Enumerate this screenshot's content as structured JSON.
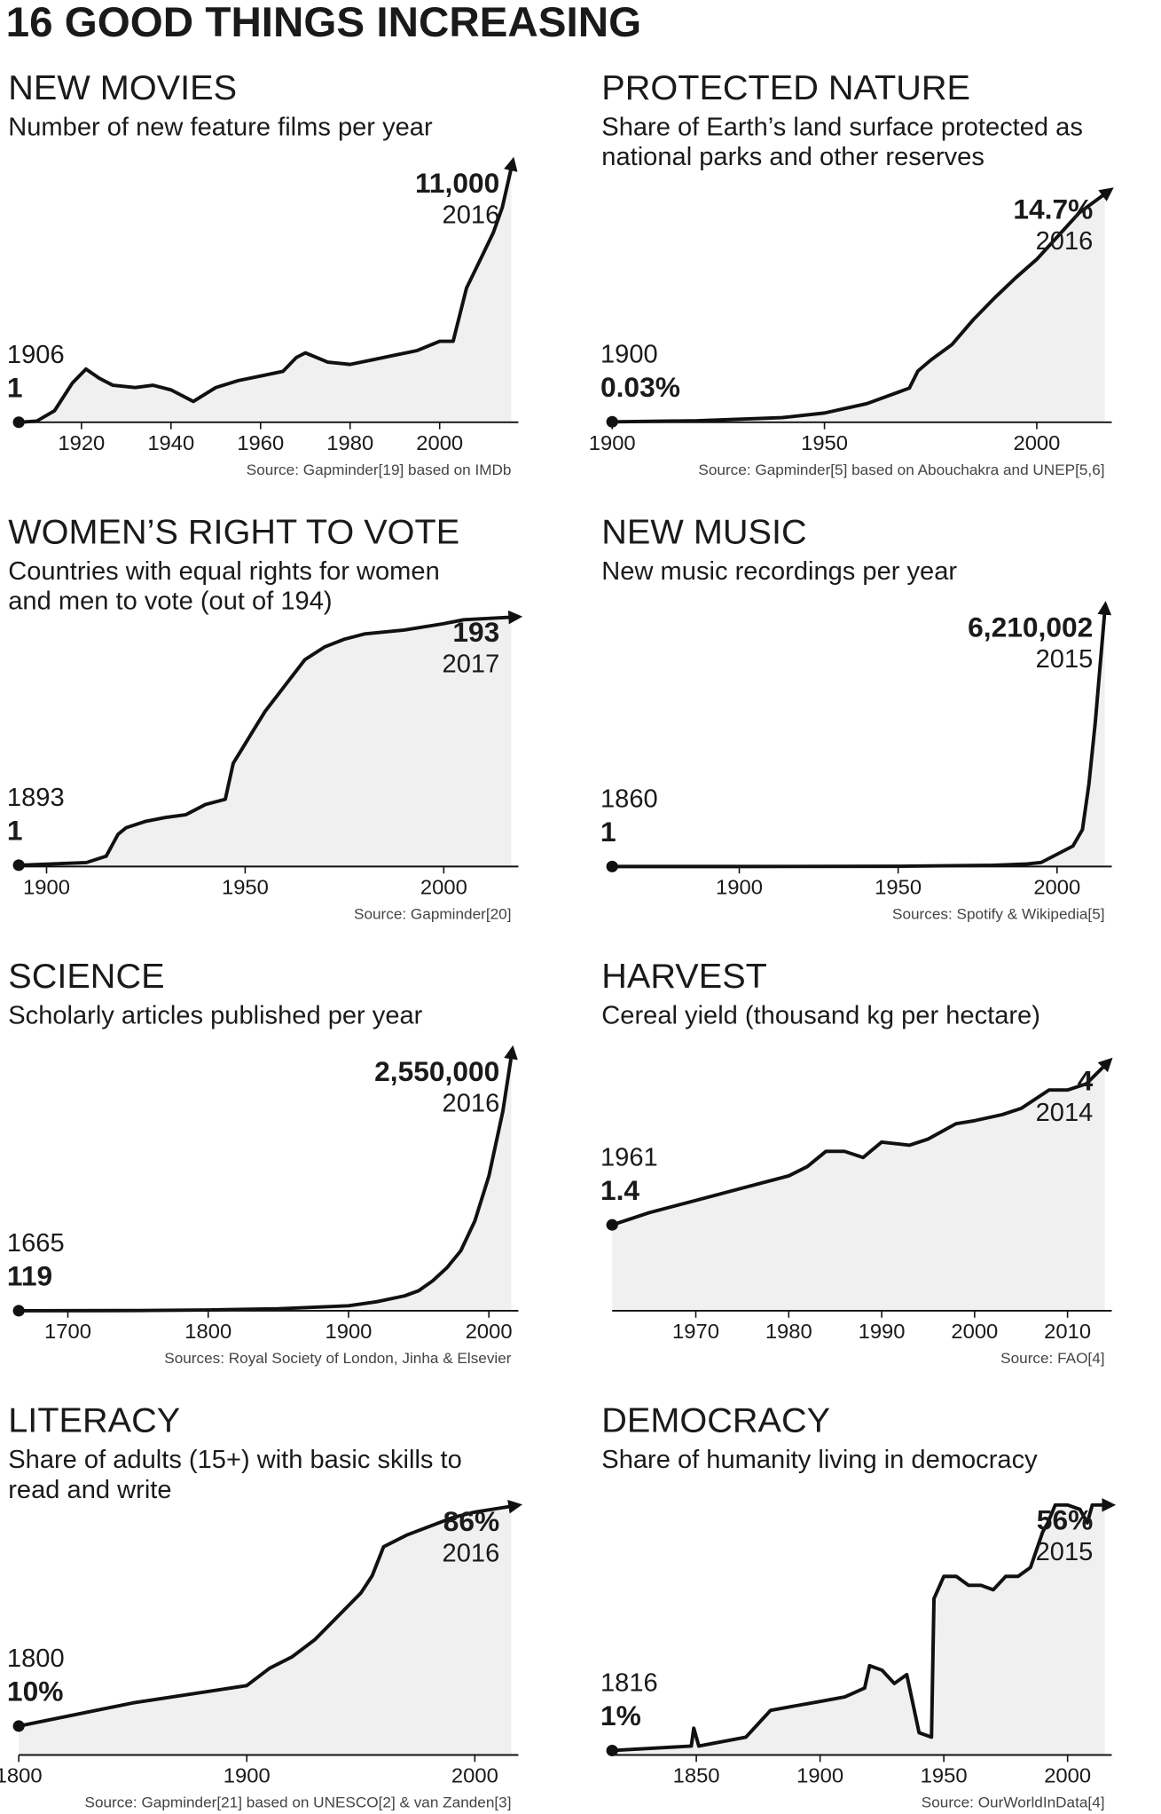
{
  "title": "16 GOOD THINGS INCREASING",
  "chart_data": [
    {
      "type": "line",
      "title": "NEW MOVIES",
      "subtitle": [
        "Number of new feature films per year"
      ],
      "source": "Source: Gapminder[19] based on IMDb",
      "x": [
        1906,
        1910,
        1914,
        1918,
        1921,
        1924,
        1927,
        1932,
        1936,
        1940,
        1945,
        1950,
        1955,
        1960,
        1965,
        1968,
        1970,
        1975,
        1980,
        1985,
        1990,
        1995,
        2000,
        2003,
        2006,
        2009,
        2012,
        2014,
        2016
      ],
      "values": [
        1,
        50,
        500,
        1700,
        2300,
        1900,
        1600,
        1500,
        1600,
        1400,
        900,
        1500,
        1800,
        2000,
        2200,
        2800,
        3000,
        2600,
        2500,
        2700,
        2900,
        3100,
        3500,
        3500,
        5800,
        7000,
        8200,
        9300,
        11000
      ],
      "xlim": [
        1906,
        2016
      ],
      "ylim": [
        0,
        11000
      ],
      "xticks": [
        1920,
        1940,
        1960,
        1980,
        2000
      ],
      "annotations": [
        {
          "x": 1906,
          "value": 1
        },
        {
          "x": 2016,
          "value": 11000,
          "label": "11,000"
        }
      ]
    },
    {
      "type": "line",
      "title": "PROTECTED NATURE",
      "subtitle": [
        "Share of Earth’s land surface protected as",
        "national parks and other reserves"
      ],
      "source": "Source: Gapminder[5] based on Abouchakra and UNEP[5,6]",
      "x": [
        1900,
        1920,
        1940,
        1950,
        1960,
        1970,
        1972,
        1975,
        1980,
        1985,
        1990,
        1995,
        2000,
        2005,
        2010,
        2016
      ],
      "values": [
        0.03,
        0.1,
        0.3,
        0.6,
        1.2,
        2.2,
        3.3,
        4.0,
        5.0,
        6.6,
        8.0,
        9.3,
        10.5,
        12.0,
        13.5,
        14.7
      ],
      "xlim": [
        1900,
        2016
      ],
      "ylim": [
        0,
        16.4
      ],
      "xticks": [
        1900,
        1950,
        2000
      ],
      "annotations": [
        {
          "x": 1900,
          "value": 0.03,
          "label": "0.03%"
        },
        {
          "x": 2016,
          "value": 14.7,
          "label": "14.7%"
        }
      ]
    },
    {
      "type": "line",
      "title": "WOMEN’S RIGHT TO VOTE",
      "subtitle": [
        "Countries with equal rights for women",
        "and men to vote (out of 194)"
      ],
      "source": "Source: Gapminder[20]",
      "x": [
        1893,
        1910,
        1915,
        1918,
        1920,
        1925,
        1930,
        1935,
        1940,
        1945,
        1947,
        1950,
        1952,
        1955,
        1960,
        1965,
        1970,
        1975,
        1980,
        1990,
        2000,
        2005,
        2017
      ],
      "values": [
        1,
        3,
        8,
        25,
        30,
        35,
        38,
        40,
        48,
        52,
        80,
        95,
        105,
        120,
        140,
        160,
        170,
        176,
        180,
        183,
        188,
        191,
        193
      ],
      "xlim": [
        1893,
        2017
      ],
      "ylim": [
        0,
        197
      ],
      "xticks": [
        1900,
        1950,
        2000
      ],
      "annotations": [
        {
          "x": 1893,
          "value": 1
        },
        {
          "x": 2017,
          "value": 193
        }
      ]
    },
    {
      "type": "line",
      "title": "NEW MUSIC",
      "subtitle": [
        "New music recordings per year"
      ],
      "source": "Sources: Spotify & Wikipedia[5]",
      "x": [
        1860,
        1900,
        1950,
        1980,
        1990,
        1995,
        2000,
        2005,
        2008,
        2010,
        2012,
        2015
      ],
      "values": [
        1,
        100,
        5000,
        30000,
        60000,
        100000,
        300000,
        500000,
        900000,
        2000000,
        3500000,
        6210002
      ],
      "xlim": [
        1860,
        2015
      ],
      "ylim": [
        0,
        6210002
      ],
      "xticks": [
        1900,
        1950,
        2000
      ],
      "annotations": [
        {
          "x": 1860,
          "value": 1
        },
        {
          "x": 2015,
          "value": 6210002,
          "label": "6,210,002"
        }
      ]
    },
    {
      "type": "line",
      "title": "SCIENCE",
      "subtitle": [
        "Scholarly articles published per year"
      ],
      "source": "Sources: Royal Society of London, Jinha & Elsevier",
      "x": [
        1665,
        1750,
        1800,
        1850,
        1900,
        1920,
        1940,
        1950,
        1960,
        1970,
        1980,
        1990,
        2000,
        2010,
        2016
      ],
      "values": [
        119,
        2000,
        8000,
        20000,
        50000,
        90000,
        150000,
        200000,
        300000,
        430000,
        600000,
        900000,
        1350000,
        2000000,
        2550000
      ],
      "xlim": [
        1665,
        2016
      ],
      "ylim": [
        0,
        2550000
      ],
      "xticks": [
        1700,
        1800,
        1900,
        2000
      ],
      "annotations": [
        {
          "x": 1665,
          "value": 119
        },
        {
          "x": 2016,
          "value": 2550000,
          "label": "2,550,000"
        }
      ]
    },
    {
      "type": "line",
      "title": "HARVEST",
      "subtitle": [
        "Cereal yield (thousand kg per hectare)"
      ],
      "source": "Source: FAO[4]",
      "x": [
        1961,
        1965,
        1970,
        1975,
        1980,
        1982,
        1984,
        1986,
        1988,
        1990,
        1993,
        1995,
        1998,
        2000,
        2003,
        2005,
        2008,
        2010,
        2012,
        2014
      ],
      "values": [
        1.4,
        1.6,
        1.8,
        2.0,
        2.2,
        2.35,
        2.6,
        2.6,
        2.5,
        2.75,
        2.7,
        2.8,
        3.05,
        3.1,
        3.2,
        3.3,
        3.6,
        3.6,
        3.7,
        4
      ],
      "xlim": [
        1961,
        2014
      ],
      "ylim": [
        0,
        4.15
      ],
      "xticks": [
        1970,
        1980,
        1990,
        2000,
        2010
      ],
      "annotations": [
        {
          "x": 1961,
          "value": 1.4
        },
        {
          "x": 2014,
          "value": 4
        }
      ]
    },
    {
      "type": "line",
      "title": "LITERACY",
      "subtitle": [
        "Share of adults (15+) with basic skills to",
        "read and write"
      ],
      "source": "Source: Gapminder[21] based on UNESCO[2] & van Zanden[3]",
      "x": [
        1800,
        1850,
        1900,
        1910,
        1920,
        1930,
        1940,
        1950,
        1955,
        1960,
        1970,
        1980,
        1990,
        2000,
        2016
      ],
      "values": [
        10,
        18,
        24,
        30,
        34,
        40,
        48,
        56,
        62,
        72,
        76,
        79,
        82,
        84,
        86
      ],
      "xlim": [
        1800,
        2016
      ],
      "ylim": [
        0,
        88
      ],
      "xticks": [
        1800,
        1900,
        2000
      ],
      "annotations": [
        {
          "x": 1800,
          "value": 10,
          "label": "10%"
        },
        {
          "x": 2016,
          "value": 86,
          "label": "86%"
        }
      ]
    },
    {
      "type": "line",
      "title": "DEMOCRACY",
      "subtitle": [
        "Share of humanity living in democracy"
      ],
      "source": "Source: OurWorldInData[4]",
      "x": [
        1816,
        1848,
        1849,
        1851,
        1870,
        1880,
        1890,
        1900,
        1910,
        1918,
        1920,
        1925,
        1930,
        1935,
        1940,
        1945,
        1946,
        1950,
        1955,
        1960,
        1965,
        1970,
        1975,
        1980,
        1985,
        1990,
        1992,
        1995,
        2000,
        2005,
        2008,
        2010,
        2015
      ],
      "values": [
        1,
        2,
        6,
        2,
        4,
        10,
        11,
        12,
        13,
        15,
        20,
        19,
        16,
        18,
        5,
        4,
        35,
        40,
        40,
        38,
        38,
        37,
        40,
        40,
        42,
        50,
        52,
        56,
        56,
        55,
        52,
        56,
        56
      ],
      "xlim": [
        1816,
        2015
      ],
      "ylim": [
        0,
        57
      ],
      "xticks": [
        1850,
        1900,
        1950,
        2000
      ],
      "annotations": [
        {
          "x": 1816,
          "value": 1,
          "label": "1%"
        },
        {
          "x": 2015,
          "value": 56,
          "label": "56%"
        }
      ]
    }
  ]
}
